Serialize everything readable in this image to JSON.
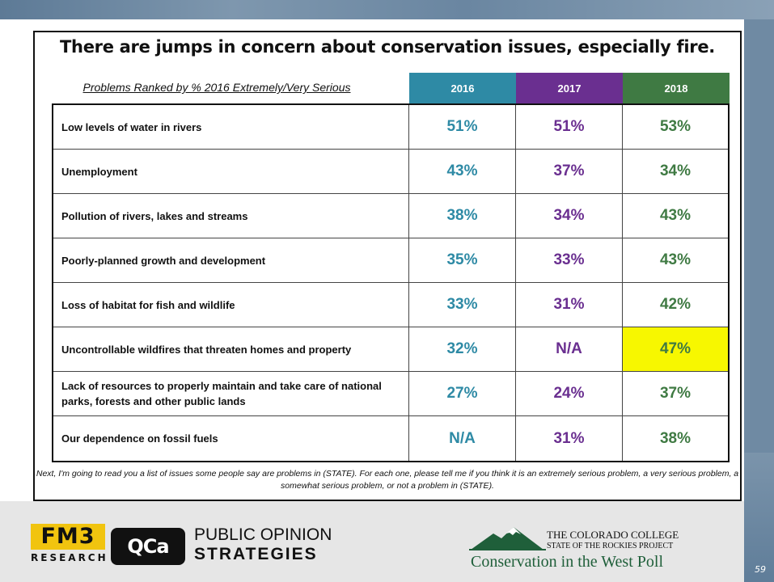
{
  "title": "There are jumps in concern about conservation issues, especially fire.",
  "subtitle": "Problems Ranked by % 2016 Extremely/Very Serious",
  "colors": {
    "y2016": "#2e8aa5",
    "y2017": "#6a2f90",
    "y2018": "#3f7a43",
    "highlight": "#f7f700"
  },
  "years": [
    "2016",
    "2017",
    "2018"
  ],
  "rows": [
    {
      "label": "Low levels of water in rivers",
      "v2016": "51%",
      "v2017": "51%",
      "v2018": "53%"
    },
    {
      "label": "Unemployment",
      "v2016": "43%",
      "v2017": "37%",
      "v2018": "34%"
    },
    {
      "label": "Pollution of rivers, lakes and streams",
      "v2016": "38%",
      "v2017": "34%",
      "v2018": "43%"
    },
    {
      "label": "Poorly-planned growth and development",
      "v2016": "35%",
      "v2017": "33%",
      "v2018": "43%"
    },
    {
      "label": "Loss of habitat for fish and wildlife",
      "v2016": "33%",
      "v2017": "31%",
      "v2018": "42%"
    },
    {
      "label": "Uncontrollable wildfires that threaten homes and property",
      "v2016": "32%",
      "v2017": "N/A",
      "v2018": "47%"
    },
    {
      "label": "Lack of resources to properly maintain and take care of national parks, forests and other public lands",
      "v2016": "27%",
      "v2017": "24%",
      "v2018": "37%"
    },
    {
      "label": "Our dependence on fossil fuels",
      "v2016": "N/A",
      "v2017": "31%",
      "v2018": "38%"
    }
  ],
  "note": "Next, I'm going to read you a list of issues some people say are problems in (STATE). For each one, please tell me if you think it is an extremely serious problem, a very serious problem, a somewhat serious problem, or not a problem in (STATE).",
  "footer": {
    "fm3_top": "FM3",
    "fm3_bottom": "RESEARCH",
    "qca": "QCa",
    "pos_line1": "PUBLIC OPINION",
    "pos_line2": "STRATEGIES",
    "cc_line1": "THE COLORADO COLLEGE",
    "cc_line2": "STATE OF THE ROCKIES PROJECT",
    "cc_line3": "Conservation in the West Poll"
  },
  "page_number": "59"
}
